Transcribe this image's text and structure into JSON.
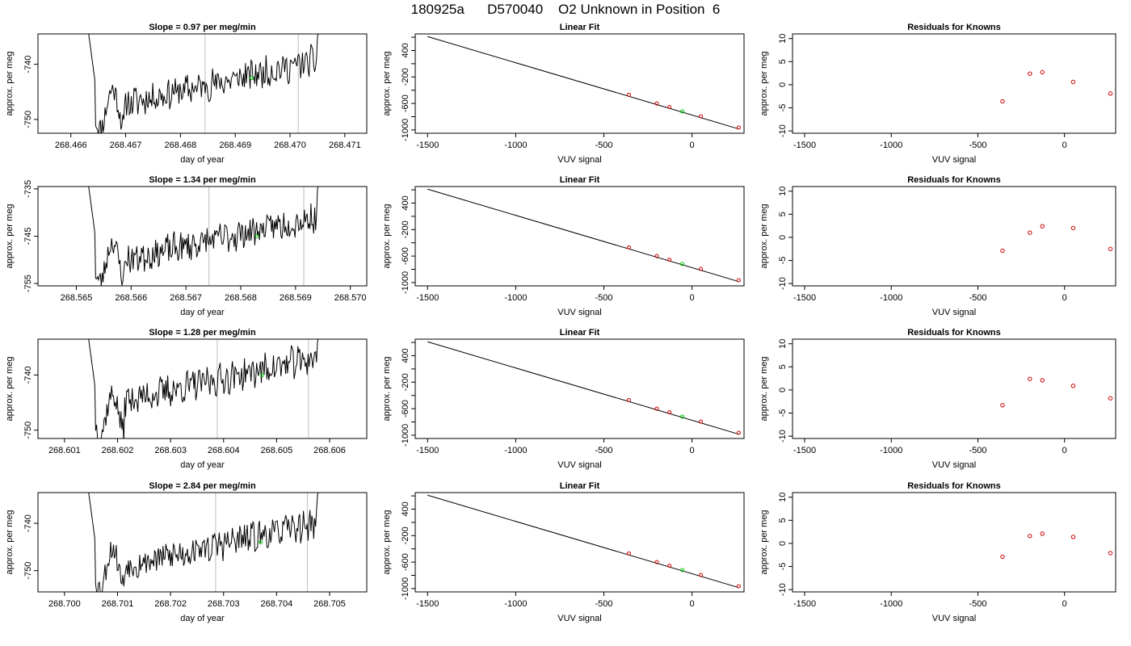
{
  "page_title": "180925a      D570040    O2 Unknown in Position  6",
  "colors": {
    "trace": "#000000",
    "vline": "#bebebe",
    "known": "#cd0000",
    "unknown": "#00cd00"
  },
  "chart_data": [
    {
      "type": "line",
      "row": 0,
      "title": "Slope =  0.97  per meg/min",
      "xlabel": "day of year",
      "ylabel": "approx. per meg",
      "xlim": [
        268.4654,
        268.4714
      ],
      "ylim": [
        -752.5,
        -734.5
      ],
      "xticks": [
        "268.466",
        "268.467",
        "268.468",
        "268.469",
        "268.470",
        "268.471"
      ],
      "yticks": [
        "-750",
        "-740"
      ],
      "vlines": [
        268.46845,
        268.47015
      ],
      "marker": [
        268.4693,
        -742.5
      ],
      "noise_seed": 11
    },
    {
      "type": "scatter",
      "row": 0,
      "title": "Linear Fit",
      "xlabel": "VUV signal",
      "ylabel": "approx. per meg",
      "xlim": [
        -1570,
        295
      ],
      "ylim": [
        -1050,
        450
      ],
      "xticks": [
        "-1500",
        "-1000",
        "-500",
        "0"
      ],
      "yticks": [
        "-1000",
        "-800",
        "-600",
        "-400",
        "-200",
        "0",
        "200",
        "400"
      ],
      "yticklabels": [
        "-1000",
        "",
        "-600",
        "",
        "-200",
        "",
        "400"
      ],
      "line": [
        [
          -1500,
          410
        ],
        [
          265,
          -985
        ]
      ],
      "knowns": [
        [
          -358,
          -470
        ],
        [
          -200,
          -600
        ],
        [
          -128,
          -655
        ],
        [
          50,
          -795
        ],
        [
          265,
          -965
        ]
      ],
      "unknown": [
        [
          -55,
          -720
        ]
      ]
    },
    {
      "type": "scatter",
      "row": 0,
      "title": "Residuals for Knowns",
      "xlabel": "VUV signal",
      "ylabel": "approx. per meg",
      "xlim": [
        -1570,
        295
      ],
      "ylim": [
        -10.5,
        11
      ],
      "xticks": [
        "-1500",
        "-1000",
        "-500",
        "0"
      ],
      "yticks": [
        "-10",
        "-5",
        "0",
        "5",
        "10"
      ],
      "points": [
        [
          -358,
          -3.6
        ],
        [
          -200,
          2.4
        ],
        [
          -128,
          2.7
        ],
        [
          50,
          0.6
        ],
        [
          265,
          -1.9
        ]
      ]
    },
    {
      "type": "line",
      "row": 1,
      "title": "Slope =  1.34  per meg/min",
      "xlabel": "day of year",
      "ylabel": "approx. per meg",
      "xlim": [
        268.5643,
        268.5703
      ],
      "ylim": [
        -755.5,
        -734.5
      ],
      "xticks": [
        "268.565",
        "268.566",
        "268.567",
        "268.568",
        "268.569",
        "268.570"
      ],
      "yticks": [
        "-755",
        "-745",
        "-735"
      ],
      "vlines": [
        268.56742,
        268.56915
      ],
      "marker": [
        268.5683,
        -745.0
      ],
      "noise_seed": 23
    },
    {
      "type": "scatter",
      "row": 1,
      "title": "Linear Fit",
      "xlabel": "VUV signal",
      "ylabel": "approx. per meg",
      "xlim": [
        -1570,
        295
      ],
      "ylim": [
        -1050,
        450
      ],
      "xticks": [
        "-1500",
        "-1000",
        "-500",
        "0"
      ],
      "yticks": [
        "-1000",
        "-800",
        "-600",
        "-400",
        "-200",
        "0",
        "200",
        "400"
      ],
      "yticklabels": [
        "-1000",
        "",
        "-600",
        "",
        "-200",
        "",
        "400"
      ],
      "line": [
        [
          -1500,
          410
        ],
        [
          265,
          -985
        ]
      ],
      "knowns": [
        [
          -358,
          -470
        ],
        [
          -200,
          -600
        ],
        [
          -128,
          -655
        ],
        [
          50,
          -795
        ],
        [
          265,
          -965
        ]
      ],
      "unknown": [
        [
          -55,
          -720
        ]
      ]
    },
    {
      "type": "scatter",
      "row": 1,
      "title": "Residuals for Knowns",
      "xlabel": "VUV signal",
      "ylabel": "approx. per meg",
      "xlim": [
        -1570,
        295
      ],
      "ylim": [
        -10.5,
        11
      ],
      "xticks": [
        "-1500",
        "-1000",
        "-500",
        "0"
      ],
      "yticks": [
        "-10",
        "-5",
        "0",
        "5",
        "10"
      ],
      "points": [
        [
          -358,
          -2.9
        ],
        [
          -200,
          1.0
        ],
        [
          -128,
          2.4
        ],
        [
          50,
          2.0
        ],
        [
          265,
          -2.5
        ]
      ]
    },
    {
      "type": "line",
      "row": 2,
      "title": "Slope =  1.28  per meg/min",
      "xlabel": "day of year",
      "ylabel": "approx. per meg",
      "xlim": [
        268.6005,
        268.6067
      ],
      "ylim": [
        -751.5,
        -733.5
      ],
      "xticks": [
        "268.601",
        "268.602",
        "268.603",
        "268.604",
        "268.605",
        "268.606"
      ],
      "yticks": [
        "-750",
        "-740"
      ],
      "vlines": [
        268.60388,
        268.6056
      ],
      "marker": [
        268.60473,
        -740.0
      ],
      "noise_seed": 37
    },
    {
      "type": "scatter",
      "row": 2,
      "title": "Linear Fit",
      "xlabel": "VUV signal",
      "ylabel": "approx. per meg",
      "xlim": [
        -1570,
        295
      ],
      "ylim": [
        -1050,
        450
      ],
      "xticks": [
        "-1500",
        "-1000",
        "-500",
        "0"
      ],
      "yticks": [
        "-1000",
        "-800",
        "-600",
        "-400",
        "-200",
        "0",
        "200",
        "400"
      ],
      "yticklabels": [
        "-1000",
        "",
        "-600",
        "",
        "-200",
        "",
        "400"
      ],
      "line": [
        [
          -1500,
          410
        ],
        [
          265,
          -985
        ]
      ],
      "knowns": [
        [
          -358,
          -470
        ],
        [
          -200,
          -600
        ],
        [
          -128,
          -655
        ],
        [
          50,
          -795
        ],
        [
          265,
          -965
        ]
      ],
      "unknown": [
        [
          -55,
          -720
        ]
      ]
    },
    {
      "type": "scatter",
      "row": 2,
      "title": "Residuals for Knowns",
      "xlabel": "VUV signal",
      "ylabel": "approx. per meg",
      "xlim": [
        -1570,
        295
      ],
      "ylim": [
        -10.5,
        11
      ],
      "xticks": [
        "-1500",
        "-1000",
        "-500",
        "0"
      ],
      "yticks": [
        "-10",
        "-5",
        "0",
        "5",
        "10"
      ],
      "points": [
        [
          -358,
          -3.3
        ],
        [
          -200,
          2.4
        ],
        [
          -128,
          2.1
        ],
        [
          50,
          0.9
        ],
        [
          265,
          -1.8
        ]
      ]
    },
    {
      "type": "line",
      "row": 3,
      "title": "Slope =  2.84  per meg/min",
      "xlabel": "day of year",
      "ylabel": "approx. per meg",
      "xlim": [
        268.6995,
        268.7057
      ],
      "ylim": [
        -754.5,
        -733.5
      ],
      "xticks": [
        "268.700",
        "268.701",
        "268.702",
        "268.703",
        "268.704",
        "268.705"
      ],
      "yticks": [
        "-750",
        "-740"
      ],
      "vlines": [
        268.70285,
        268.70458
      ],
      "marker": [
        268.7037,
        -744.0
      ],
      "noise_seed": 53
    },
    {
      "type": "scatter",
      "row": 3,
      "title": "Linear Fit",
      "xlabel": "VUV signal",
      "ylabel": "approx. per meg",
      "xlim": [
        -1570,
        295
      ],
      "ylim": [
        -1050,
        450
      ],
      "xticks": [
        "-1500",
        "-1000",
        "-500",
        "0"
      ],
      "yticks": [
        "-1000",
        "-800",
        "-600",
        "-400",
        "-200",
        "0",
        "200",
        "400"
      ],
      "yticklabels": [
        "-1000",
        "",
        "-600",
        "",
        "-200",
        "",
        "400"
      ],
      "line": [
        [
          -1500,
          410
        ],
        [
          265,
          -985
        ]
      ],
      "knowns": [
        [
          -358,
          -470
        ],
        [
          -200,
          -600
        ],
        [
          -128,
          -655
        ],
        [
          50,
          -795
        ],
        [
          265,
          -965
        ]
      ],
      "unknown": [
        [
          -55,
          -720
        ]
      ]
    },
    {
      "type": "scatter",
      "row": 3,
      "title": "Residuals for Knowns",
      "xlabel": "VUV signal",
      "ylabel": "approx. per meg",
      "xlim": [
        -1570,
        295
      ],
      "ylim": [
        -10.5,
        11
      ],
      "xticks": [
        "-1500",
        "-1000",
        "-500",
        "0"
      ],
      "yticks": [
        "-10",
        "-5",
        "0",
        "5",
        "10"
      ],
      "points": [
        [
          -358,
          -2.9
        ],
        [
          -200,
          1.6
        ],
        [
          -128,
          2.1
        ],
        [
          50,
          1.4
        ],
        [
          265,
          -2.1
        ]
      ]
    }
  ]
}
